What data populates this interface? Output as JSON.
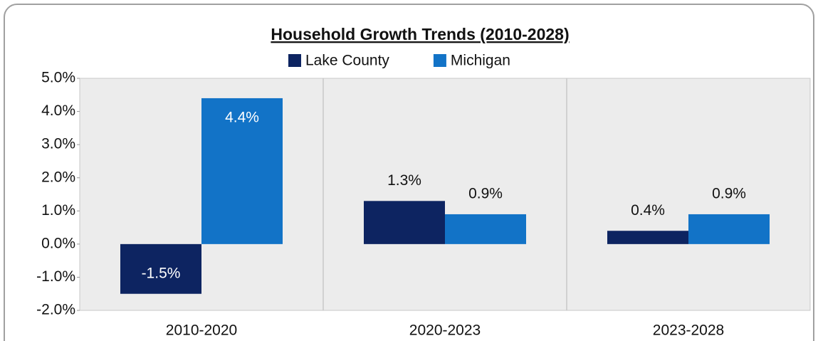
{
  "chart_data": {
    "type": "bar",
    "title": "Household Growth Trends (2010-2028)",
    "categories": [
      "2010-2020",
      "2020-2023",
      "2023-2028"
    ],
    "series": [
      {
        "name": "Lake County",
        "color": "#0d2461",
        "values": [
          -1.5,
          1.3,
          0.4
        ],
        "value_labels": [
          "-1.5%",
          "1.3%",
          "0.4%"
        ]
      },
      {
        "name": "Michigan",
        "color": "#1273c7",
        "values": [
          4.4,
          0.9,
          0.9
        ],
        "value_labels": [
          "4.4%",
          "0.9%",
          "0.9%"
        ]
      }
    ],
    "ylim": [
      -2,
      5
    ],
    "yticks": [
      {
        "value": -2,
        "label": "-2.0%"
      },
      {
        "value": -1,
        "label": "-1.0%"
      },
      {
        "value": 0,
        "label": "0.0%"
      },
      {
        "value": 1,
        "label": "1.0%"
      },
      {
        "value": 2,
        "label": "2.0%"
      },
      {
        "value": 3,
        "label": "3.0%"
      },
      {
        "value": 4,
        "label": "4.0%"
      },
      {
        "value": 5,
        "label": "5.0%"
      }
    ],
    "legend": "top"
  }
}
